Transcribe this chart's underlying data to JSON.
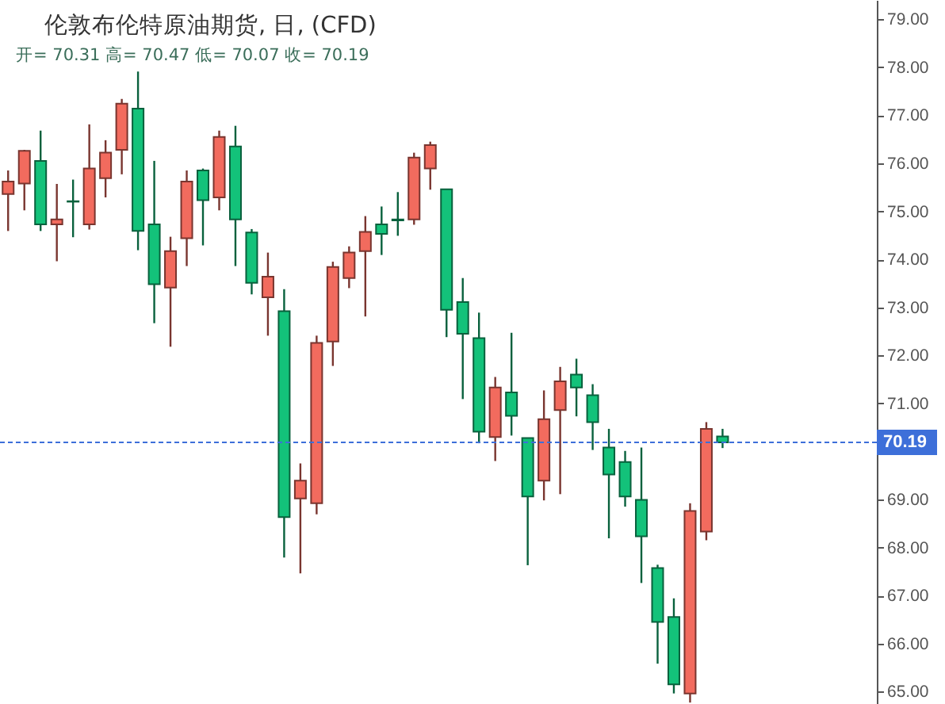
{
  "chart_data": {
    "type": "candlestick",
    "title": "伦敦布伦特原油期货, 日, (CFD)",
    "subtitle": "开= 70.31  高= 70.47  低= 70.07  收= 70.19",
    "categories": [
      null,
      null,
      null,
      null,
      null,
      null,
      null,
      null,
      null,
      null,
      null,
      null,
      null,
      null,
      null,
      null,
      null,
      null,
      null,
      null,
      null,
      null,
      null,
      null,
      null,
      null,
      null,
      null,
      null,
      null,
      null,
      null,
      null,
      null,
      null,
      null,
      null,
      null,
      null,
      null,
      null,
      null,
      null,
      null,
      null,
      null,
      null,
      null,
      null,
      null,
      null,
      null,
      null,
      null
    ],
    "ohlc": [
      [
        75.36,
        75.85,
        74.59,
        75.62
      ],
      [
        75.58,
        76.28,
        75.02,
        76.26
      ],
      [
        76.05,
        76.68,
        74.59,
        74.73
      ],
      [
        74.73,
        75.57,
        73.96,
        74.83
      ],
      [
        75.21,
        75.66,
        74.46,
        75.2
      ],
      [
        74.73,
        76.81,
        74.62,
        75.89
      ],
      [
        75.69,
        76.48,
        75.29,
        76.22
      ],
      [
        76.28,
        77.34,
        75.77,
        77.24
      ],
      [
        77.14,
        77.91,
        74.19,
        74.59
      ],
      [
        74.73,
        76.05,
        72.67,
        73.48
      ],
      [
        73.41,
        74.47,
        72.18,
        74.17
      ],
      [
        74.44,
        75.85,
        73.86,
        75.62
      ],
      [
        75.85,
        75.89,
        74.29,
        75.23
      ],
      [
        75.29,
        76.68,
        75.02,
        76.55
      ],
      [
        76.35,
        76.78,
        73.86,
        74.83
      ],
      [
        74.56,
        74.63,
        73.27,
        73.51
      ],
      [
        73.21,
        74.14,
        72.41,
        73.64
      ],
      [
        72.92,
        73.38,
        67.79,
        68.63
      ],
      [
        69.02,
        69.75,
        67.46,
        69.39
      ],
      [
        68.92,
        72.41,
        68.69,
        72.26
      ],
      [
        72.29,
        73.95,
        71.78,
        73.84
      ],
      [
        73.61,
        74.27,
        73.4,
        74.14
      ],
      [
        74.17,
        74.9,
        72.81,
        74.57
      ],
      [
        74.73,
        75.1,
        74.09,
        74.53
      ],
      [
        74.83,
        75.4,
        74.49,
        74.81
      ],
      [
        74.83,
        76.22,
        74.72,
        76.12
      ],
      [
        75.89,
        76.45,
        75.45,
        76.38
      ],
      [
        75.46,
        75.46,
        72.38,
        72.95
      ],
      [
        73.11,
        73.61,
        71.09,
        72.45
      ],
      [
        72.36,
        72.89,
        70.17,
        70.41
      ],
      [
        70.3,
        71.55,
        69.8,
        71.33
      ],
      [
        71.23,
        72.47,
        70.33,
        70.74
      ],
      [
        70.28,
        70.28,
        67.63,
        69.06
      ],
      [
        69.39,
        71.27,
        68.98,
        70.67
      ],
      [
        70.86,
        71.76,
        69.11,
        71.46
      ],
      [
        71.6,
        71.93,
        70.73,
        71.33
      ],
      [
        71.17,
        71.4,
        70.03,
        70.61
      ],
      [
        70.08,
        70.47,
        68.19,
        69.52
      ],
      [
        69.78,
        70.01,
        68.85,
        69.06
      ],
      [
        68.99,
        70.08,
        67.26,
        68.23
      ],
      [
        67.57,
        67.64,
        65.58,
        66.45
      ],
      [
        66.55,
        66.94,
        64.96,
        65.15
      ],
      [
        64.96,
        68.92,
        64.77,
        68.76
      ],
      [
        68.33,
        70.61,
        68.15,
        70.47
      ],
      [
        70.31,
        70.47,
        70.07,
        70.19
      ],
      null,
      null,
      null,
      null,
      null,
      null,
      null,
      null,
      null
    ],
    "colors": [
      "#f26b5e",
      "#f26b5e",
      "#13c27a",
      "#f26b5e",
      "#13c27a",
      "#f26b5e",
      "#f26b5e",
      "#f26b5e",
      "#13c27a",
      "#13c27a",
      "#f26b5e",
      "#f26b5e",
      "#13c27a",
      "#f26b5e",
      "#13c27a",
      "#13c27a",
      "#f26b5e",
      "#13c27a",
      "#f26b5e",
      "#f26b5e",
      "#f26b5e",
      "#f26b5e",
      "#f26b5e",
      "#13c27a",
      "#13c27a",
      "#f26b5e",
      "#f26b5e",
      "#13c27a",
      "#13c27a",
      "#13c27a",
      "#f26b5e",
      "#13c27a",
      "#13c27a",
      "#f26b5e",
      "#f26b5e",
      "#13c27a",
      "#13c27a",
      "#13c27a",
      "#13c27a",
      "#13c27a",
      "#13c27a",
      "#13c27a",
      "#f26b5e",
      "#f26b5e",
      "#13c27a",
      null,
      null,
      null,
      null,
      null,
      null,
      null,
      null,
      null
    ],
    "ylim": [
      64.74,
      79.4
    ],
    "yticks": [
      {
        "value": 65,
        "label": "65.00"
      },
      {
        "value": 66,
        "label": "66.00"
      },
      {
        "value": 67,
        "label": "67.00"
      },
      {
        "value": 68,
        "label": "68.00"
      },
      {
        "value": 69,
        "label": "69.00"
      },
      {
        "value": 70,
        "label": null
      },
      {
        "value": 71,
        "label": "71.00"
      },
      {
        "value": 72,
        "label": "72.00"
      },
      {
        "value": 73,
        "label": "73.00"
      },
      {
        "value": 74,
        "label": "74.00"
      },
      {
        "value": 75,
        "label": "75.00"
      },
      {
        "value": 76,
        "label": "76.00"
      },
      {
        "value": 77,
        "label": "77.00"
      },
      {
        "value": 78,
        "label": "78.00"
      },
      {
        "value": 79,
        "label": "79.00"
      }
    ],
    "ref_lines": [
      {
        "axis": "y",
        "value": 70.19,
        "label": "70.19",
        "color": "#3d6fd9",
        "line_style": "dashed"
      }
    ],
    "tick_labels": "y"
  }
}
